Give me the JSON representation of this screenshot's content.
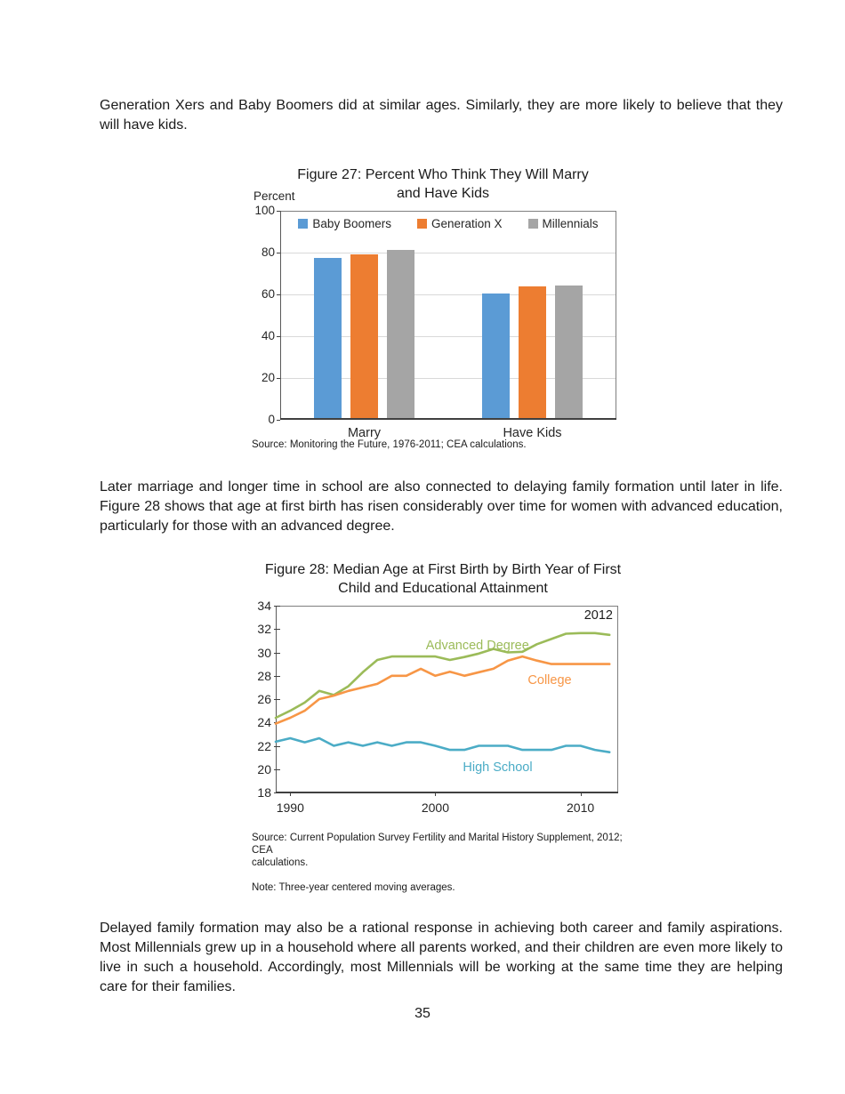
{
  "page": {
    "number": "35"
  },
  "paragraphs": {
    "p1": "Generation Xers and Baby Boomers did at similar ages. Similarly, they are more likely to believe that they will have kids.",
    "p2": "Later marriage and longer time in school are also connected to delaying family formation until later in life. Figure 28 shows that age at first birth has risen considerably over time for women with advanced education, particularly for those with an advanced degree.",
    "p3": "Delayed family formation may also be a rational response in achieving both career and family aspirations. Most Millennials grew up in a household where all parents worked, and their children are even more likely to live in such a household. Accordingly, most Millennials will be working at the same time they are helping care for their families."
  },
  "chart_data": [
    {
      "type": "bar",
      "title": "Figure 27: Percent Who Think They Will Marry\nand Have Kids",
      "ylabel": "Percent",
      "ylim": [
        0,
        100
      ],
      "yticks": [
        0,
        20,
        40,
        60,
        80,
        100
      ],
      "grid": true,
      "legend_position": "top-inside",
      "categories": [
        "Marry",
        "Have Kids"
      ],
      "series": [
        {
          "name": "Baby Boomers",
          "color": "#5B9BD5",
          "values": [
            77.3,
            60.5
          ]
        },
        {
          "name": "Generation X",
          "color": "#ED7D31",
          "values": [
            79.3,
            64.0
          ]
        },
        {
          "name": "Millennials",
          "color": "#A5A5A5",
          "values": [
            81.2,
            64.4
          ]
        }
      ],
      "source": "Source: Monitoring the Future, 1976-2011; CEA calculations."
    },
    {
      "type": "line",
      "title": "Figure 28: Median Age at First Birth by Birth Year of First\nChild and Educational Attainment",
      "ylim": [
        18,
        34
      ],
      "yticks": [
        18,
        20,
        22,
        24,
        26,
        28,
        30,
        32,
        34
      ],
      "xlim": [
        1989,
        2012.6
      ],
      "xticks": [
        1990,
        2000,
        2010
      ],
      "grid": false,
      "annotation": "2012",
      "x": [
        1989,
        1990,
        1991,
        1992,
        1993,
        1994,
        1995,
        1996,
        1997,
        1998,
        1999,
        2000,
        2001,
        2002,
        2003,
        2004,
        2005,
        2006,
        2007,
        2008,
        2009,
        2010,
        2011,
        2012
      ],
      "series": [
        {
          "name": "Advanced Degree",
          "color": "#9BBB59",
          "values": [
            24.4,
            25.0,
            25.7,
            26.7,
            26.35,
            27.1,
            28.3,
            29.35,
            29.65,
            29.65,
            29.65,
            29.65,
            29.35,
            29.6,
            29.9,
            30.3,
            30.0,
            30.05,
            30.7,
            31.15,
            31.6,
            31.65,
            31.65,
            31.5
          ]
        },
        {
          "name": "College",
          "color": "#F79646",
          "values": [
            23.9,
            24.4,
            25.0,
            26.0,
            26.3,
            26.7,
            27.0,
            27.3,
            28.0,
            28.0,
            28.6,
            28.0,
            28.35,
            28.0,
            28.3,
            28.6,
            29.3,
            29.65,
            29.3,
            29.0,
            29.0,
            29.0,
            29.0,
            29.0
          ]
        },
        {
          "name": "High School",
          "color": "#4BACC6",
          "values": [
            22.35,
            22.65,
            22.3,
            22.65,
            22.0,
            22.3,
            22.0,
            22.3,
            22.0,
            22.3,
            22.3,
            22.0,
            21.65,
            21.65,
            22.0,
            22.0,
            22.0,
            21.65,
            21.65,
            21.65,
            22.0,
            22.0,
            21.65,
            21.45
          ]
        }
      ],
      "source": "Source: Current Population Survey Fertility and Marital History Supplement, 2012; CEA\ncalculations.",
      "note": "Note: Three-year centered moving averages."
    }
  ]
}
